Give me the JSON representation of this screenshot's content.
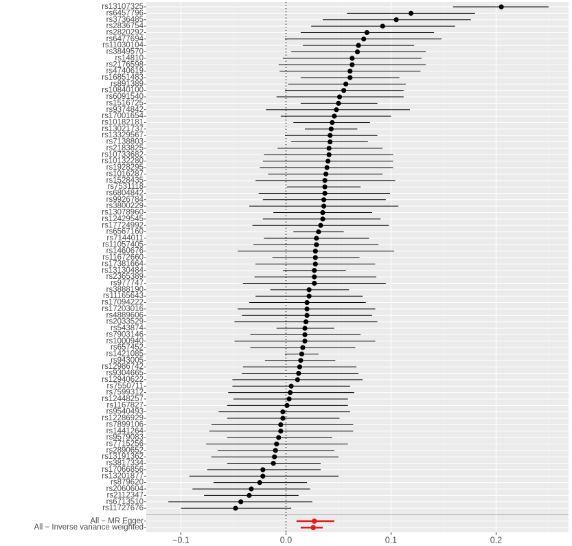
{
  "chart_data": {
    "type": "forest",
    "categories": [
      "rs13107325",
      "rs6457796",
      "rs3736485",
      "rs2836754",
      "rs2820292",
      "rs6477694",
      "rs11030104",
      "rs3849570",
      "rs14810",
      "rs2176598",
      "rs4740619",
      "rs16851483",
      "rs891389",
      "rs10840100",
      "rs6091540",
      "rs1516725",
      "rs9374842",
      "rs17001654",
      "rs10182181",
      "rs13021737",
      "rs13329567",
      "rs7138803",
      "rs2183825",
      "rs10733682",
      "rs10132280",
      "rs1928295",
      "rs1016287",
      "rs1528435",
      "rs7531118",
      "rs6804842",
      "rs9926784",
      "rs3800229",
      "rs13078960",
      "rs12429545",
      "rs17724992",
      "rs6567160",
      "rs7144011",
      "rs11057405",
      "rs1460676",
      "rs11672660",
      "rs17381664",
      "rs13130484",
      "rs2365389",
      "rs977747",
      "rs3888190",
      "rs11165643",
      "rs17094222",
      "rs17203016",
      "rs4889606",
      "rs2033529",
      "rs543874",
      "rs7903146",
      "rs1000940",
      "rs657452",
      "rs1421085",
      "rs943005",
      "rs12986742",
      "rs9304665",
      "rs12940622",
      "rs7550711",
      "rs7599312",
      "rs12448257",
      "rs1167827",
      "rs9540493",
      "rs12286929",
      "rs7899106",
      "rs1441264",
      "rs9579083",
      "rs7715256",
      "rs2890652",
      "rs13191362",
      "rs3817334",
      "rs17066856",
      "rs13201877",
      "rs879620",
      "rs2060604",
      "rs2112347",
      "rs6713510",
      "rs11727676"
    ],
    "values": [
      0.205,
      0.119,
      0.105,
      0.092,
      0.077,
      0.074,
      0.069,
      0.068,
      0.063,
      0.063,
      0.061,
      0.061,
      0.057,
      0.055,
      0.051,
      0.05,
      0.048,
      0.046,
      0.044,
      0.043,
      0.042,
      0.042,
      0.041,
      0.041,
      0.04,
      0.039,
      0.038,
      0.037,
      0.037,
      0.037,
      0.036,
      0.036,
      0.035,
      0.035,
      0.033,
      0.031,
      0.029,
      0.029,
      0.028,
      0.028,
      0.028,
      0.027,
      0.027,
      0.027,
      0.022,
      0.022,
      0.02,
      0.02,
      0.02,
      0.019,
      0.018,
      0.018,
      0.018,
      0.016,
      0.015,
      0.014,
      0.013,
      0.012,
      0.011,
      0.005,
      0.004,
      0.003,
      0.001,
      -0.003,
      -0.003,
      -0.005,
      -0.005,
      -0.007,
      -0.009,
      -0.01,
      -0.011,
      -0.012,
      -0.022,
      -0.022,
      -0.025,
      -0.033,
      -0.035,
      -0.043,
      -0.048
    ],
    "ci_low": [
      0.159,
      0.058,
      0.035,
      0.024,
      0.014,
      -0.001,
      0.016,
      0.005,
      -0.003,
      -0.007,
      -0.006,
      0.014,
      0.002,
      -0.001,
      -0.009,
      0.014,
      -0.019,
      -0.005,
      0.007,
      0.018,
      -0.001,
      0.005,
      -0.008,
      -0.021,
      -0.022,
      -0.025,
      -0.017,
      -0.029,
      0.001,
      -0.026,
      -0.022,
      -0.035,
      -0.012,
      -0.022,
      -0.032,
      0.007,
      -0.021,
      -0.031,
      -0.046,
      -0.013,
      -0.029,
      -0.003,
      -0.03,
      -0.041,
      -0.015,
      -0.029,
      -0.035,
      -0.046,
      -0.042,
      -0.049,
      -0.009,
      -0.034,
      -0.049,
      -0.034,
      -0.001,
      -0.02,
      -0.041,
      -0.042,
      -0.051,
      -0.051,
      -0.055,
      -0.05,
      -0.056,
      -0.064,
      -0.056,
      -0.071,
      -0.073,
      -0.056,
      -0.076,
      -0.065,
      -0.071,
      -0.056,
      -0.075,
      -0.092,
      -0.069,
      -0.089,
      -0.078,
      -0.112,
      -0.1
    ],
    "ci_high": [
      0.25,
      0.18,
      0.176,
      0.161,
      0.141,
      0.148,
      0.122,
      0.133,
      0.129,
      0.133,
      0.128,
      0.108,
      0.114,
      0.112,
      0.112,
      0.087,
      0.118,
      0.1,
      0.08,
      0.068,
      0.087,
      0.078,
      0.092,
      0.102,
      0.102,
      0.102,
      0.092,
      0.104,
      0.071,
      0.099,
      0.095,
      0.107,
      0.082,
      0.09,
      0.098,
      0.055,
      0.079,
      0.088,
      0.103,
      0.07,
      0.085,
      0.057,
      0.086,
      0.095,
      0.06,
      0.073,
      0.076,
      0.085,
      0.082,
      0.087,
      0.046,
      0.071,
      0.085,
      0.066,
      0.031,
      0.047,
      0.067,
      0.069,
      0.073,
      0.061,
      0.065,
      0.059,
      0.059,
      0.061,
      0.051,
      0.064,
      0.064,
      0.044,
      0.059,
      0.046,
      0.05,
      0.033,
      0.033,
      0.05,
      0.02,
      0.023,
      0.012,
      0.025,
      0.005
    ],
    "color": "#000000",
    "summary": {
      "categories": [
        "All − MR Egger",
        "All − Inverse variance weighted"
      ],
      "values": [
        0.027,
        0.026
      ],
      "ci_low": [
        0.01,
        0.014
      ],
      "ci_high": [
        0.046,
        0.035
      ],
      "color": "#e41a1c"
    },
    "xlim": [
      -0.133,
      0.269
    ],
    "xticks": [
      {
        "value": -0.1,
        "label": "−0.1"
      },
      {
        "value": 0,
        "label": "0.0"
      },
      0.1,
      0.2
    ],
    "refline": 0,
    "grid": true
  }
}
